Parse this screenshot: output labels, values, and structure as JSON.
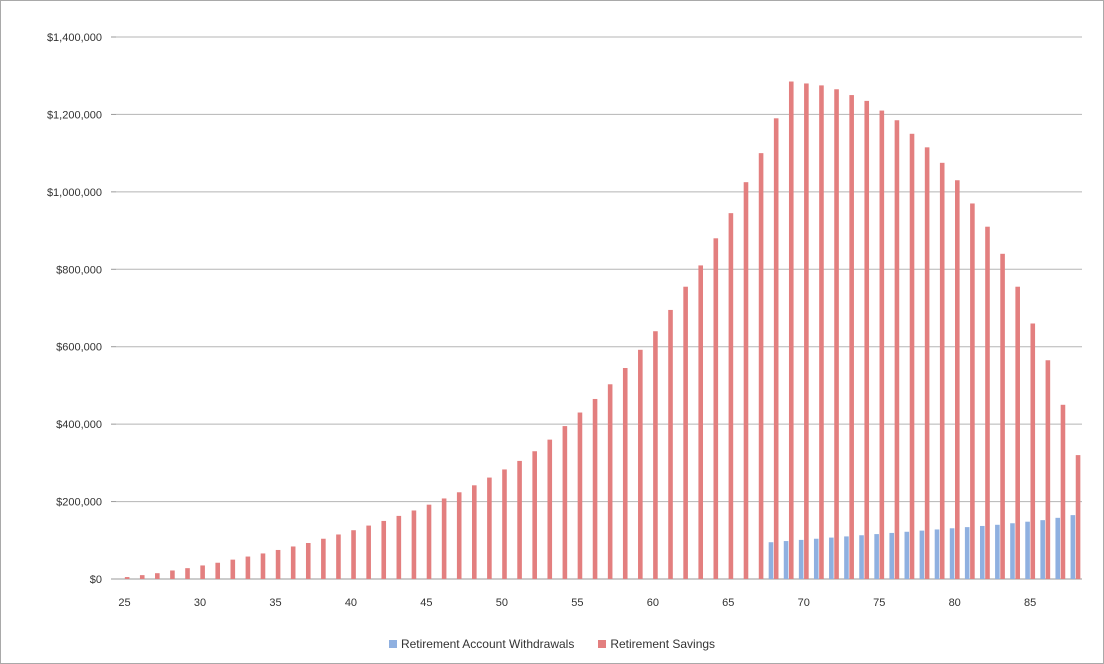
{
  "chart_data": {
    "type": "bar",
    "title": "",
    "xlabel": "",
    "ylabel": "",
    "ylim": [
      0,
      1400000
    ],
    "yticks": [
      {
        "value": 0,
        "label": "$0"
      },
      {
        "value": 200000,
        "label": "$200,000"
      },
      {
        "value": 400000,
        "label": "$400,000"
      },
      {
        "value": 600000,
        "label": "$600,000"
      },
      {
        "value": 800000,
        "label": "$800,000"
      },
      {
        "value": 1000000,
        "label": "$1,000,000"
      },
      {
        "value": 1200000,
        "label": "$1,200,000"
      },
      {
        "value": 1400000,
        "label": "$1,400,000"
      }
    ],
    "x": [
      25,
      26,
      27,
      28,
      29,
      30,
      31,
      32,
      33,
      34,
      35,
      36,
      37,
      38,
      39,
      40,
      41,
      42,
      43,
      44,
      45,
      46,
      47,
      48,
      49,
      50,
      51,
      52,
      53,
      54,
      55,
      56,
      57,
      58,
      59,
      60,
      61,
      62,
      63,
      64,
      65,
      66,
      67,
      68,
      69,
      70,
      71,
      72,
      73,
      74,
      75,
      76,
      77,
      78,
      79,
      80,
      81,
      82,
      83,
      84,
      85,
      86,
      87,
      88
    ],
    "xtick_labels": [
      "25",
      "30",
      "35",
      "40",
      "45",
      "50",
      "55",
      "60",
      "65",
      "70",
      "75",
      "80",
      "85"
    ],
    "grid": true,
    "legend_position": "bottom",
    "series": [
      {
        "name": "Retirement Account Withdrawals",
        "color": "#8fb0e0",
        "values": [
          0,
          0,
          0,
          0,
          0,
          0,
          0,
          0,
          0,
          0,
          0,
          0,
          0,
          0,
          0,
          0,
          0,
          0,
          0,
          0,
          0,
          0,
          0,
          0,
          0,
          0,
          0,
          0,
          0,
          0,
          0,
          0,
          0,
          0,
          0,
          0,
          0,
          0,
          0,
          0,
          0,
          0,
          0,
          95000,
          98000,
          101000,
          104000,
          107000,
          110000,
          113000,
          116000,
          119000,
          122000,
          125000,
          128000,
          131000,
          134000,
          137000,
          140000,
          144000,
          148000,
          152000,
          158000,
          165000
        ]
      },
      {
        "name": "Retirement Savings",
        "color": "#e37f7f",
        "values": [
          5000,
          10000,
          15000,
          22000,
          28000,
          35000,
          42000,
          50000,
          58000,
          66000,
          75000,
          84000,
          93000,
          104000,
          115000,
          126000,
          138000,
          150000,
          163000,
          177000,
          192000,
          208000,
          224000,
          242000,
          262000,
          283000,
          305000,
          330000,
          360000,
          395000,
          430000,
          465000,
          503000,
          545000,
          592000,
          640000,
          695000,
          755000,
          810000,
          880000,
          945000,
          1025000,
          1100000,
          1190000,
          1285000,
          1280000,
          1275000,
          1265000,
          1250000,
          1235000,
          1210000,
          1185000,
          1150000,
          1115000,
          1075000,
          1030000,
          970000,
          910000,
          840000,
          755000,
          660000,
          565000,
          450000,
          320000
        ]
      }
    ]
  }
}
